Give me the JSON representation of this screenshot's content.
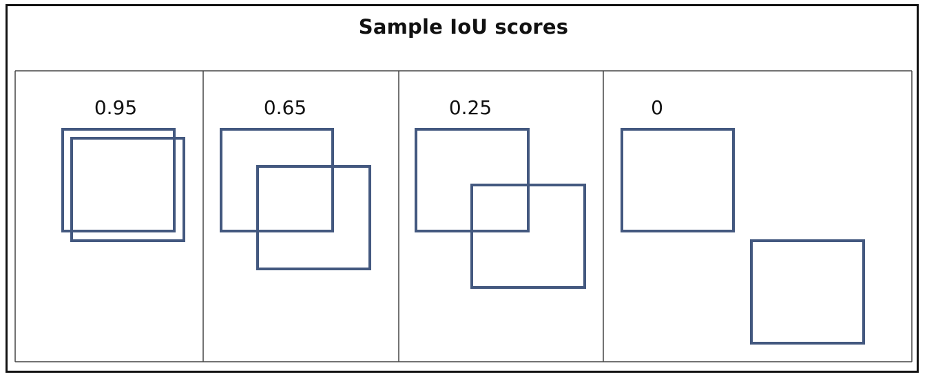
{
  "title": "Sample IoU scores",
  "colors": {
    "box_stroke": "#43587f",
    "grid_line": "#444444",
    "frame": "#111111"
  },
  "panels": [
    {
      "score_label": "0.95"
    },
    {
      "score_label": "0.65"
    },
    {
      "score_label": "0.25"
    },
    {
      "score_label": "0"
    }
  ]
}
